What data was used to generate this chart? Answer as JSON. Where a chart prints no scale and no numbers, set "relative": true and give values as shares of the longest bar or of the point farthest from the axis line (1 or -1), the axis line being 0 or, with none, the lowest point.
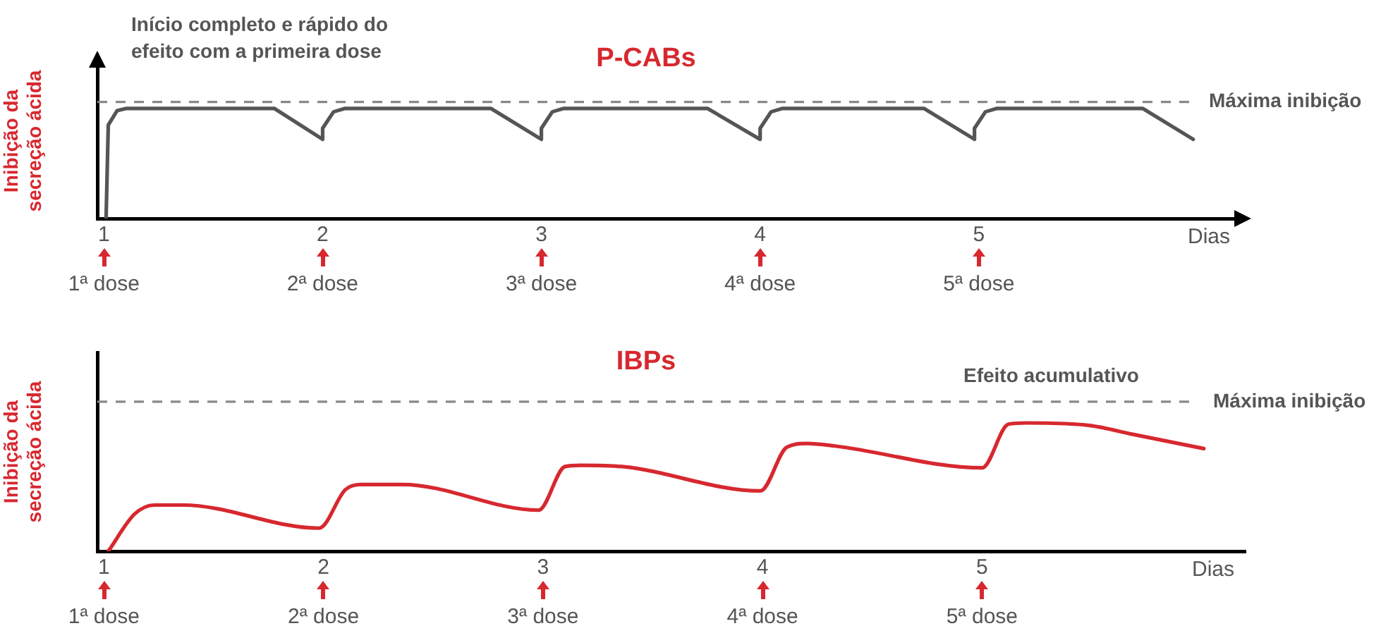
{
  "chart_data": [
    {
      "type": "line",
      "title": "P-CABs",
      "ylabel": "Inibição da secreção ácida",
      "xlabel": "Dias",
      "relative": true,
      "xlim": [
        0.97,
        6.2
      ],
      "xticks": [
        1,
        2,
        3,
        4,
        5
      ],
      "grid": false,
      "legend": false,
      "marker": "none",
      "line_style": "solid",
      "series": [
        {
          "color": "#555555",
          "x": [
            1.01,
            1.02,
            1.06,
            1.1,
            1.78,
            2.0,
            2.0,
            2.05,
            2.1,
            2.77,
            3.0,
            3.0,
            3.05,
            3.1,
            3.76,
            4.0,
            4.0,
            4.05,
            4.1,
            4.75,
            4.98,
            4.98,
            5.03,
            5.08,
            5.75,
            5.98
          ],
          "values": [
            0,
            0.85,
            0.98,
            1,
            1,
            0.72,
            0.82,
            0.97,
            1,
            1,
            0.72,
            0.82,
            0.97,
            1,
            1,
            0.72,
            0.82,
            0.97,
            1,
            1,
            0.72,
            0.82,
            0.97,
            1,
            1,
            0.72
          ]
        }
      ],
      "ref_lines": [
        {
          "axis": "y",
          "value": 1.06,
          "label": "Máxima inibição",
          "color": "#888888",
          "line_style": "dashed"
        }
      ],
      "annotations": [
        "Início completo e rápido do efeito com a primeira dose",
        "1ª dose",
        "2ª dose",
        "3ª dose",
        "4ª dose",
        "5ª dose"
      ]
    },
    {
      "type": "line",
      "title": "IBPs",
      "ylabel": "Inibição da secreção ácida",
      "xlabel": "Dias",
      "relative": true,
      "xlim": [
        0.97,
        6.2
      ],
      "xticks": [
        1,
        2,
        3,
        4,
        5
      ],
      "grid": false,
      "legend": false,
      "marker": "none",
      "line_style": "solid",
      "series": [
        {
          "color": "#d7282f",
          "x": [
            1.02,
            1.14,
            1.23,
            1.36,
            1.98,
            2.1,
            2.17,
            2.36,
            2.98,
            3.1,
            3.17,
            3.36,
            3.99,
            4.11,
            4.2,
            4.33,
            5.0,
            5.12,
            5.2,
            5.49,
            5.69,
            6.01
          ],
          "values": [
            0,
            0.29,
            0.36,
            0.36,
            0.18,
            0.48,
            0.52,
            0.52,
            0.32,
            0.66,
            0.67,
            0.66,
            0.47,
            0.81,
            0.84,
            0.82,
            0.65,
            0.99,
            1,
            0.98,
            0.91,
            0.8
          ]
        }
      ],
      "ref_lines": [
        {
          "axis": "y",
          "value": 1.165,
          "label": "Máxima inibição",
          "color": "#888888",
          "line_style": "dashed"
        }
      ],
      "annotations": [
        "Efeito acumulativo",
        "1ª dose",
        "2ª dose",
        "3ª dose",
        "4ª dose",
        "5ª dose"
      ]
    }
  ]
}
